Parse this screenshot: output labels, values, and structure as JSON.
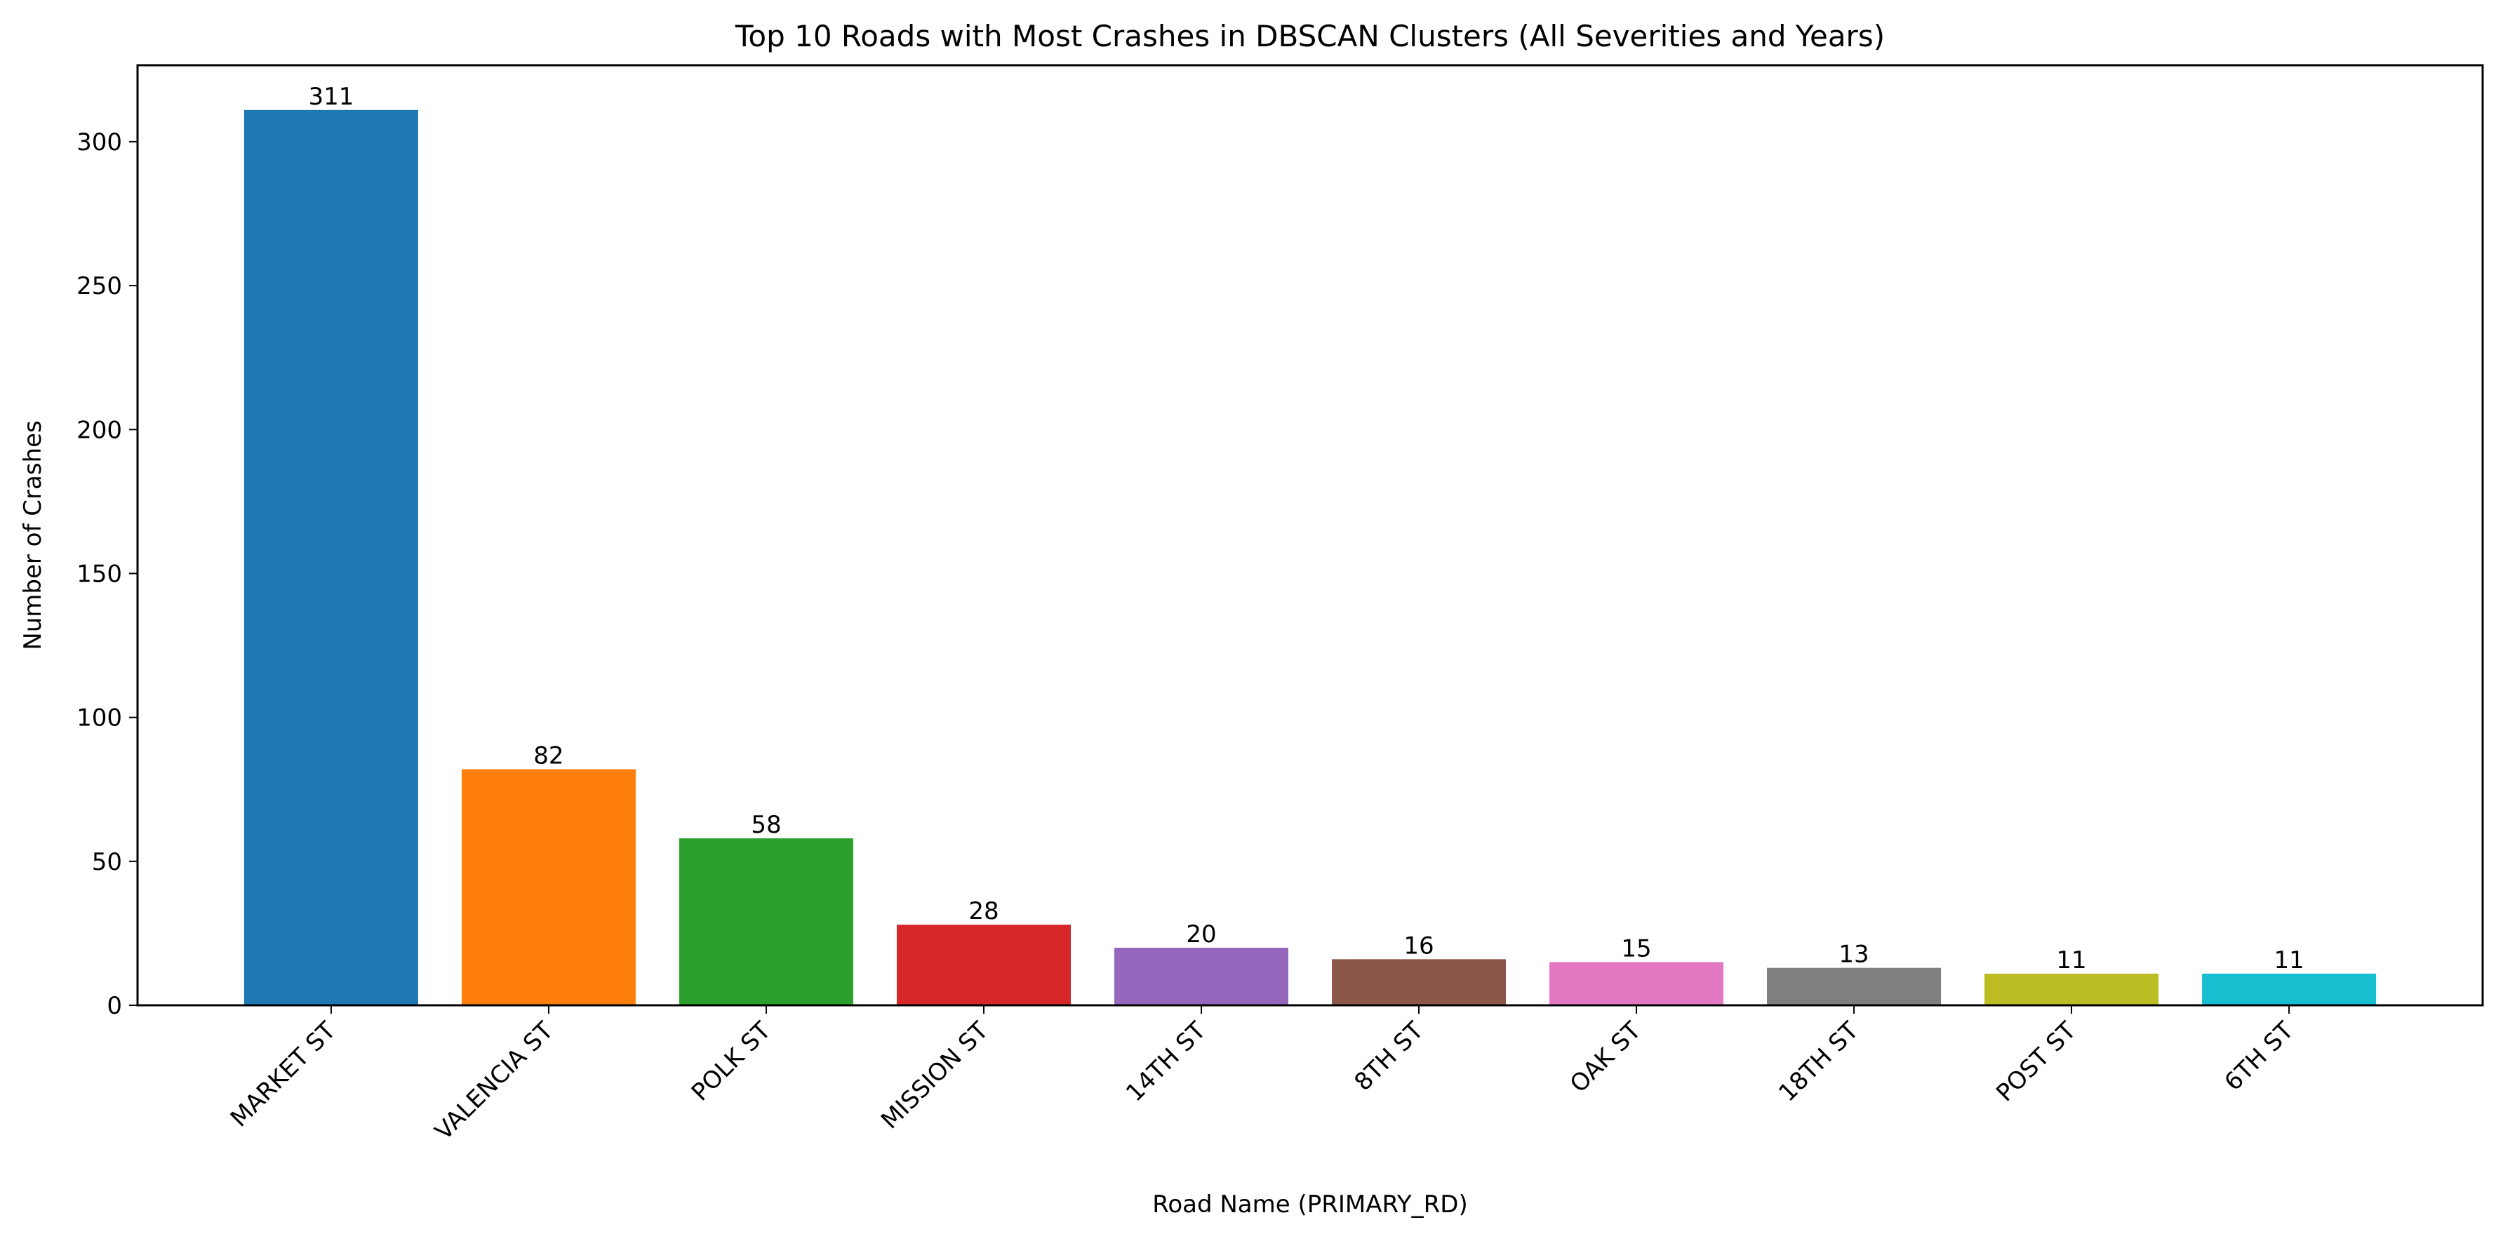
{
  "chart_data": {
    "type": "bar",
    "title": "Top 10 Roads with Most Crashes in DBSCAN Clusters (All Severities and Years)",
    "xlabel": "Road Name (PRIMARY_RD)",
    "ylabel": "Number of Crashes",
    "categories": [
      "MARKET ST",
      "VALENCIA ST",
      "POLK ST",
      "MISSION ST",
      "14TH ST",
      "8TH ST",
      "OAK ST",
      "18TH ST",
      "POST ST",
      "6TH ST"
    ],
    "values": [
      311,
      82,
      58,
      28,
      20,
      16,
      15,
      13,
      11,
      11
    ],
    "colors": [
      "#1f77b4",
      "#ff7f0e",
      "#2ca02c",
      "#d62728",
      "#9467bd",
      "#8c564b",
      "#e377c2",
      "#7f7f7f",
      "#bcbd22",
      "#17becf"
    ],
    "ylim": [
      0,
      326.55
    ],
    "yticks": [
      0,
      50,
      100,
      150,
      200,
      250,
      300
    ],
    "grid": false,
    "data_labels": true
  }
}
